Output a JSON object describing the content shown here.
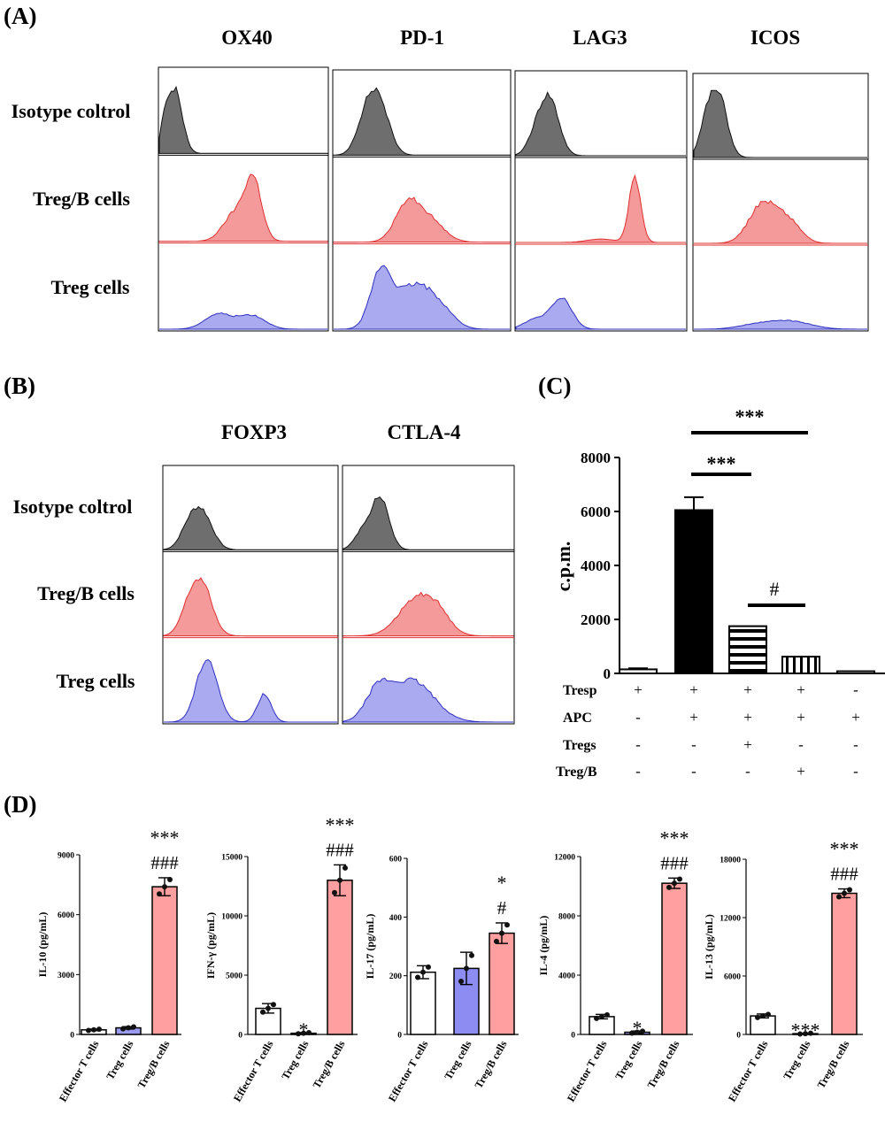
{
  "colors": {
    "isotype": "#6e6e6e",
    "treg_b": "#f59a9a",
    "treg_b_line": "#e03030",
    "treg": "#aaaaf0",
    "treg_line": "#3030c0",
    "bar_pink": "#ff9f9f",
    "bar_blue": "#8c8cf2"
  },
  "panelA": {
    "label": "(A)",
    "rows": [
      "Isotype coltrol",
      "Treg/B cells",
      "Treg cells"
    ],
    "markers": [
      "OX40",
      "PD-1",
      "LAG3",
      "ICOS"
    ]
  },
  "panelB": {
    "label": "(B)",
    "rows": [
      "Isotype coltrol",
      "Treg/B cells",
      "Treg cells"
    ],
    "markers": [
      "FOXP3",
      "CTLA-4"
    ]
  },
  "panelC": {
    "label": "(C)",
    "sig_top": "***",
    "sig_mid": "***",
    "sig_hash": "#",
    "condition_rows": [
      {
        "label": "Tresp",
        "values": [
          "+",
          "+",
          "+",
          "+",
          "-"
        ]
      },
      {
        "label": "APC",
        "values": [
          "-",
          "+",
          "+",
          "+",
          "+"
        ]
      },
      {
        "label": "Tregs",
        "values": [
          "-",
          "-",
          "+",
          "-",
          "-"
        ]
      },
      {
        "label": "Treg/B",
        "values": [
          "-",
          "-",
          "-",
          "+",
          "-"
        ]
      }
    ]
  },
  "panelD": {
    "label": "(D)",
    "categories": [
      "Effector T cells",
      "Treg cells",
      "Treg/B cells"
    ]
  },
  "chart_data": [
    {
      "type": "bar",
      "panel": "C",
      "ylabel": "c.p.m.",
      "ylim": [
        0,
        8000
      ],
      "yticks": [
        0,
        2000,
        4000,
        6000,
        8000
      ],
      "values": [
        150,
        6050,
        1750,
        620,
        80
      ],
      "errors": [
        40,
        480,
        0,
        0,
        0
      ],
      "fills": [
        "white",
        "black",
        "hstripes",
        "vstripes",
        "white"
      ]
    },
    {
      "type": "bar",
      "panel": "D1",
      "ylabel": "IL-10 (pg/mL)",
      "ylim": [
        0,
        9000
      ],
      "yticks": [
        0,
        3000,
        6000,
        9000
      ],
      "categories": [
        "Effector T cells",
        "Treg cells",
        "Treg/B cells"
      ],
      "values": [
        230,
        330,
        7400
      ],
      "errors": [
        40,
        60,
        450
      ],
      "annotations": [
        "",
        "",
        "***\n###"
      ]
    },
    {
      "type": "bar",
      "panel": "D2",
      "ylabel": "IFN-γ (pg/mL)",
      "ylim": [
        0,
        15000
      ],
      "yticks": [
        0,
        5000,
        10000,
        15000
      ],
      "categories": [
        "Effector T cells",
        "Treg cells",
        "Treg/B cells"
      ],
      "values": [
        2200,
        100,
        13000
      ],
      "errors": [
        400,
        60,
        1300
      ],
      "annotations": [
        "",
        "*",
        "***\n###"
      ]
    },
    {
      "type": "bar",
      "panel": "D3",
      "ylabel": "IL-17 (pg/mL)",
      "ylim": [
        0,
        600
      ],
      "yticks": [
        0,
        200,
        400,
        600
      ],
      "categories": [
        "Effector T cells",
        "Treg cells",
        "Treg/B cells"
      ],
      "values": [
        212,
        225,
        345
      ],
      "errors": [
        22,
        55,
        35
      ],
      "annotations": [
        "",
        "",
        "*\n#"
      ]
    },
    {
      "type": "bar",
      "panel": "D4",
      "ylabel": "IL-4 (pg/mL)",
      "ylim": [
        0,
        12000
      ],
      "yticks": [
        0,
        4000,
        8000,
        12000
      ],
      "categories": [
        "Effector T cells",
        "Treg cells",
        "Treg/B cells"
      ],
      "values": [
        1200,
        150,
        10200
      ],
      "errors": [
        150,
        80,
        350
      ],
      "annotations": [
        "",
        "*",
        "***\n###"
      ]
    },
    {
      "type": "bar",
      "panel": "D5",
      "ylabel": "IL-13 (pg/mL)",
      "ylim": [
        0,
        18000
      ],
      "yticks": [
        0,
        6000,
        12000,
        18000
      ],
      "categories": [
        "Effector T cells",
        "Treg cells",
        "Treg/B cells"
      ],
      "values": [
        1900,
        80,
        14500
      ],
      "errors": [
        200,
        50,
        450
      ],
      "annotations": [
        "",
        "***",
        "***\n###"
      ]
    }
  ]
}
